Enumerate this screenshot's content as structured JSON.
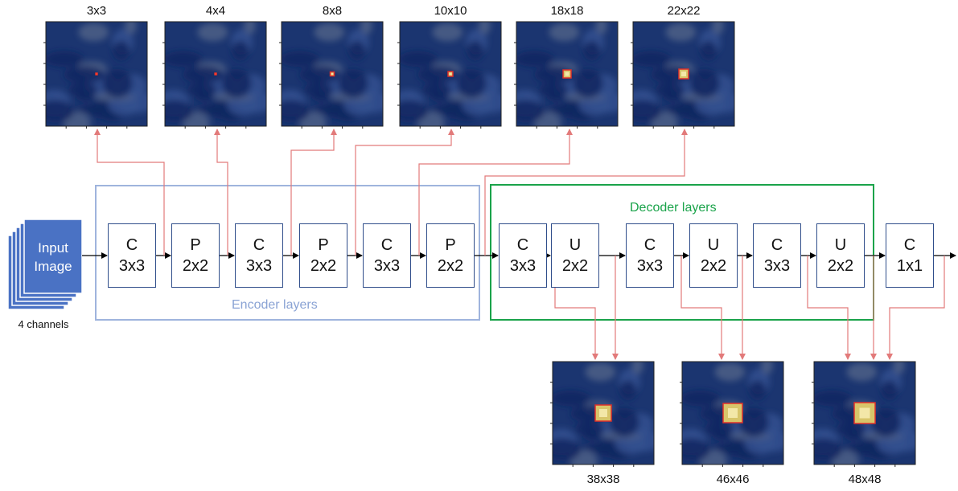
{
  "input": {
    "line1": "Input",
    "line2": "Image",
    "caption": "4 channels"
  },
  "encoder_label": "Encoder layers",
  "decoder_label": "Decoder layers",
  "layers": [
    {
      "l1": "C",
      "l2": "3x3"
    },
    {
      "l1": "P",
      "l2": "2x2"
    },
    {
      "l1": "C",
      "l2": "3x3"
    },
    {
      "l1": "P",
      "l2": "2x2"
    },
    {
      "l1": "C",
      "l2": "3x3"
    },
    {
      "l1": "P",
      "l2": "2x2"
    },
    {
      "l1": "C",
      "l2": "3x3"
    },
    {
      "l1": "U",
      "l2": "2x2"
    },
    {
      "l1": "C",
      "l2": "3x3"
    },
    {
      "l1": "U",
      "l2": "2x2"
    },
    {
      "l1": "C",
      "l2": "3x3"
    },
    {
      "l1": "U",
      "l2": "2x2"
    },
    {
      "l1": "C",
      "l2": "1x1"
    }
  ],
  "top_maps": [
    "3x3",
    "4x4",
    "8x8",
    "10x10",
    "18x18",
    "22x22"
  ],
  "bottom_maps": [
    "38x38",
    "46x46",
    "48x48"
  ],
  "colors": {
    "encoder_border": "#9fb4dd",
    "encoder_text": "#8aa3d4",
    "decoder_border": "#1aa34a",
    "decoder_text": "#1aa34a",
    "arrow_red": "#e27a7a",
    "input_fill": "#4a72c4",
    "map_bg": "#1b3570"
  }
}
